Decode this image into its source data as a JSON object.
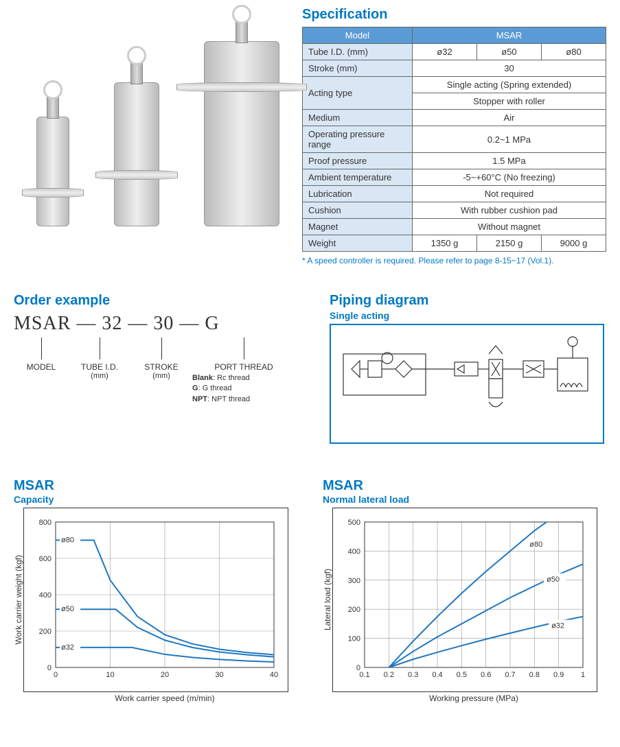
{
  "colors": {
    "brand_blue": "#0079c2",
    "table_header_bg": "#5b9bd5",
    "table_label_bg": "#d9e7f5",
    "border": "#666666",
    "chart_line": "#1f77c0",
    "chart_grid": "#999999"
  },
  "spec": {
    "title": "Specification",
    "model_header": "Model",
    "model_value": "MSAR",
    "rows": [
      {
        "label": "Tube I.D. (mm)",
        "cells": [
          "ø32",
          "ø50",
          "ø80"
        ]
      },
      {
        "label": "Stroke (mm)",
        "cells": [
          "30"
        ]
      },
      {
        "label": "Acting type",
        "cells": [
          "Single acting (Spring extended)",
          "Stopper with roller"
        ],
        "twoRows": true
      },
      {
        "label": "Medium",
        "cells": [
          "Air"
        ]
      },
      {
        "label": "Operating pressure range",
        "cells": [
          "0.2~1 MPa"
        ]
      },
      {
        "label": "Proof pressure",
        "cells": [
          "1.5 MPa"
        ]
      },
      {
        "label": "Ambient temperature",
        "cells": [
          "-5~+60°C (No freezing)"
        ]
      },
      {
        "label": "Lubrication",
        "cells": [
          "Not required"
        ]
      },
      {
        "label": "Cushion",
        "cells": [
          "With rubber cushion pad"
        ]
      },
      {
        "label": "Magnet",
        "cells": [
          "Without magnet"
        ]
      },
      {
        "label": "Weight",
        "cells": [
          "1350 g",
          "2150 g",
          "9000 g"
        ]
      }
    ],
    "footnote": "* A speed controller is required. Please refer to page 8-15~17 (Vol.1)."
  },
  "order": {
    "title": "Order example",
    "parts": [
      "MSAR",
      "32",
      "30",
      "G"
    ],
    "sep": "—",
    "labels": [
      {
        "title": "MODEL",
        "sub": ""
      },
      {
        "title": "TUBE I.D.",
        "sub": "(mm)"
      },
      {
        "title": "STROKE",
        "sub": "(mm)"
      },
      {
        "title": "PORT THREAD",
        "sub": ""
      }
    ],
    "port_thread_options": [
      {
        "key": "Blank",
        "val": "Rc thread"
      },
      {
        "key": "G",
        "val": "G thread"
      },
      {
        "key": "NPT",
        "val": "NPT thread"
      }
    ]
  },
  "piping": {
    "title": "Piping diagram",
    "subtitle": "Single acting"
  },
  "chart_capacity": {
    "title_main": "MSAR",
    "title_sub": "Capacity",
    "type": "line",
    "x_label": "Work carrier speed  (m/min)",
    "y_label": "Work carrier weight (kgf)",
    "xlim": [
      0,
      40
    ],
    "xticks": [
      0,
      10,
      20,
      30,
      40
    ],
    "ylim": [
      0,
      800
    ],
    "yticks": [
      0,
      200,
      400,
      600,
      800
    ],
    "grid_color": "#999999",
    "line_color": "#1f77c0",
    "line_width": 2,
    "series": [
      {
        "name": "ø80",
        "flat_y": 700,
        "flat_x_end": 7,
        "curve": [
          [
            7,
            700
          ],
          [
            10,
            480
          ],
          [
            15,
            280
          ],
          [
            20,
            180
          ],
          [
            25,
            130
          ],
          [
            30,
            100
          ],
          [
            35,
            82
          ],
          [
            40,
            70
          ]
        ]
      },
      {
        "name": "ø50",
        "flat_y": 320,
        "flat_x_end": 11,
        "curve": [
          [
            11,
            320
          ],
          [
            15,
            220
          ],
          [
            20,
            150
          ],
          [
            25,
            110
          ],
          [
            30,
            85
          ],
          [
            35,
            70
          ],
          [
            40,
            58
          ]
        ]
      },
      {
        "name": "ø32",
        "flat_y": 110,
        "flat_x_end": 14,
        "curve": [
          [
            14,
            110
          ],
          [
            20,
            72
          ],
          [
            25,
            55
          ],
          [
            30,
            44
          ],
          [
            35,
            36
          ],
          [
            40,
            30
          ]
        ]
      }
    ],
    "series_label_fontsize": 11
  },
  "chart_lateral": {
    "title_main": "MSAR",
    "title_sub": "Normal lateral load",
    "type": "line",
    "x_label": "Working pressure (MPa)",
    "y_label": "Lateral load (kgf)",
    "xlim": [
      0.1,
      1.0
    ],
    "xticks": [
      0.1,
      0.2,
      0.3,
      0.4,
      0.5,
      0.6,
      0.7,
      0.8,
      0.9,
      1.0
    ],
    "ylim": [
      0,
      500
    ],
    "yticks": [
      0,
      100,
      200,
      300,
      400,
      500
    ],
    "grid_color": "#999999",
    "line_color": "#1f77c0",
    "line_width": 2,
    "series": [
      {
        "name": "ø80",
        "points": [
          [
            0.2,
            0
          ],
          [
            0.3,
            90
          ],
          [
            0.4,
            175
          ],
          [
            0.5,
            255
          ],
          [
            0.6,
            330
          ],
          [
            0.7,
            400
          ],
          [
            0.8,
            470
          ],
          [
            0.85,
            500
          ]
        ]
      },
      {
        "name": "ø50",
        "points": [
          [
            0.2,
            0
          ],
          [
            0.3,
            55
          ],
          [
            0.4,
            105
          ],
          [
            0.5,
            150
          ],
          [
            0.6,
            195
          ],
          [
            0.7,
            240
          ],
          [
            0.8,
            280
          ],
          [
            0.9,
            320
          ],
          [
            1.0,
            355
          ]
        ]
      },
      {
        "name": "ø32",
        "points": [
          [
            0.2,
            0
          ],
          [
            0.3,
            28
          ],
          [
            0.4,
            52
          ],
          [
            0.5,
            75
          ],
          [
            0.6,
            97
          ],
          [
            0.7,
            118
          ],
          [
            0.8,
            138
          ],
          [
            0.9,
            158
          ],
          [
            1.0,
            175
          ]
        ]
      }
    ],
    "series_label_positions": {
      "ø80": [
        0.78,
        420
      ],
      "ø50": [
        0.85,
        300
      ],
      "ø32": [
        0.87,
        140
      ]
    },
    "series_label_fontsize": 11
  }
}
